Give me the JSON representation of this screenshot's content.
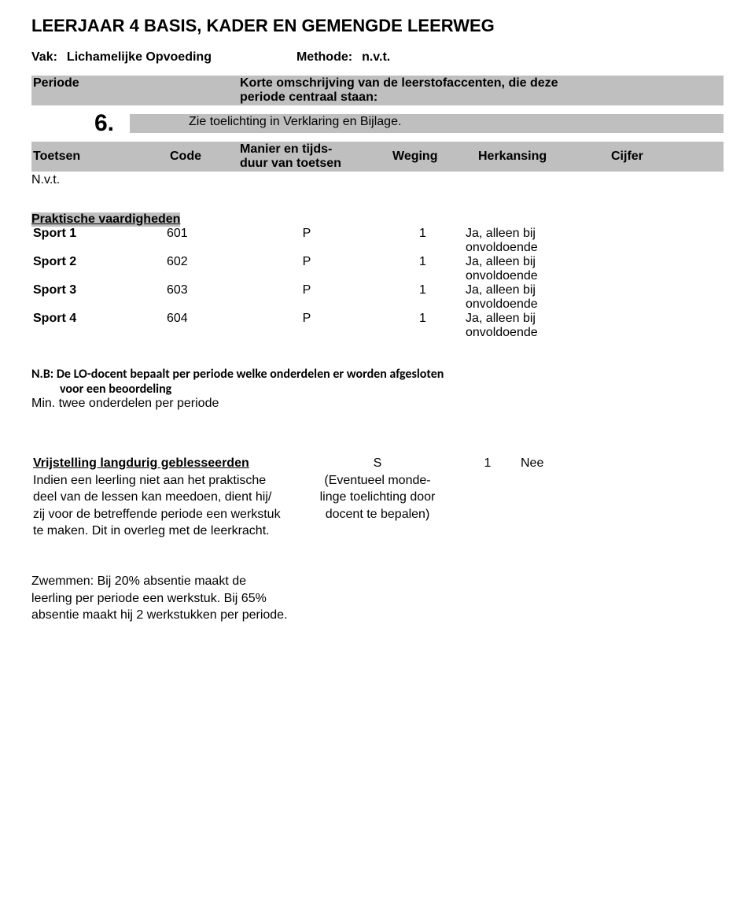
{
  "title": "LEERJAAR 4 BASIS, KADER EN GEMENGDE LEERWEG",
  "subheader": {
    "vak_label": "Vak:",
    "vak_value": "Lichamelijke Opvoeding",
    "method_label": "Methode:",
    "method_value": "n.v.t."
  },
  "band_periode_label": "Periode",
  "band_desc_lines": [
    "Korte omschrijving van de leerstofaccenten, die deze",
    "periode centraal staan:"
  ],
  "band_explanation": "Zie toelichting in Verklaring en Bijlage.",
  "period_number": "6.",
  "toetsen": {
    "left": "Toetsen",
    "code": "Code",
    "manner_line1": "Manier en tijds-",
    "manner_line2": "duur van toetsen",
    "weging": "Weging",
    "herk": "Herkansing",
    "cijfer": "Cijfer"
  },
  "nvt_text": "N.v.t.",
  "praktische_heading": "Praktische vaardigheden",
  "sports": [
    {
      "name": "Sport 1",
      "code": "601",
      "manner": "P",
      "weging": "1",
      "herk_line1": "Ja, alleen bij",
      "herk_line2": "onvoldoende"
    },
    {
      "name": "Sport 2",
      "code": "602",
      "manner": "P",
      "weging": "1",
      "herk_line1": "Ja, alleen bij",
      "herk_line2": "onvoldoende"
    },
    {
      "name": "Sport 3",
      "code": "603",
      "manner": "P",
      "weging": "1",
      "herk_line1": "Ja, alleen bij",
      "herk_line2": "onvoldoende"
    },
    {
      "name": "Sport 4",
      "code": "604",
      "manner": "P",
      "weging": "1",
      "herk_line1": "Ja, alleen bij",
      "herk_line2": "onvoldoende"
    }
  ],
  "nb_prefix": "N.B: ",
  "nb_text_line1": "De LO-docent bepaalt per periode welke onderdelen er worden afgesloten",
  "nb_text_line2": "voor een beoordeling",
  "min_line": "Min. twee onderdelen per periode",
  "exemption": {
    "heading": "Vrijstelling langdurig geblesseerden",
    "body_lines": [
      "Indien een leerling niet aan het praktische",
      "deel van de lessen kan meedoen, dient hij/",
      "zij voor de betreffende periode een werkstuk",
      "te maken. Dit in overleg met de leerkracht."
    ],
    "manner_s": "S",
    "manner_sub_lines": [
      "(Eventueel monde-",
      "linge toelichting door",
      "docent te bepalen)"
    ],
    "weging": "1",
    "herk": "Nee"
  },
  "swimming_lines": [
    "Zwemmen: Bij 20% absentie maakt de",
    "leerling per periode een werkstuk. Bij 65%",
    "absentie maakt hij 2 werkstukken per periode."
  ],
  "colors": {
    "band_bg": "#bfbfbf",
    "page_bg": "#ffffff",
    "text": "#000000"
  }
}
